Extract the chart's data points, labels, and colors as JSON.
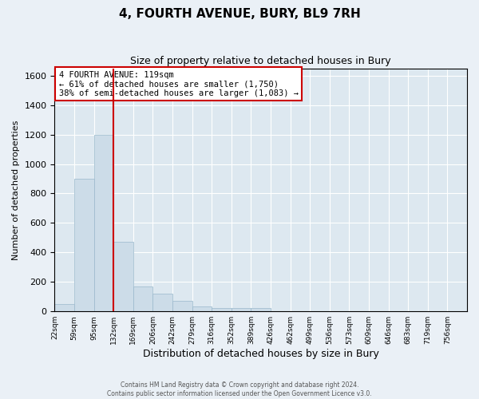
{
  "title": "4, FOURTH AVENUE, BURY, BL9 7RH",
  "subtitle": "Size of property relative to detached houses in Bury",
  "xlabel": "Distribution of detached houses by size in Bury",
  "ylabel": "Number of detached properties",
  "bar_color": "#ccdce8",
  "bar_edge_color": "#9ab8cc",
  "background_color": "#dde8f0",
  "grid_color": "#ffffff",
  "annotation_box_color": "#cc0000",
  "annotation_line_color": "#cc0000",
  "categories": [
    "22sqm",
    "59sqm",
    "95sqm",
    "132sqm",
    "169sqm",
    "206sqm",
    "242sqm",
    "279sqm",
    "316sqm",
    "352sqm",
    "389sqm",
    "426sqm",
    "462sqm",
    "499sqm",
    "536sqm",
    "573sqm",
    "609sqm",
    "646sqm",
    "683sqm",
    "719sqm",
    "756sqm"
  ],
  "values": [
    50,
    900,
    1200,
    470,
    170,
    120,
    70,
    35,
    25,
    25,
    25,
    0,
    0,
    0,
    0,
    0,
    0,
    0,
    0,
    0,
    0
  ],
  "red_line_bin": 2,
  "ylim": [
    0,
    1650
  ],
  "yticks": [
    0,
    200,
    400,
    600,
    800,
    1000,
    1200,
    1400,
    1600
  ],
  "annotation_text": "4 FOURTH AVENUE: 119sqm\n← 61% of detached houses are smaller (1,750)\n38% of semi-detached houses are larger (1,083) →",
  "footer1": "Contains HM Land Registry data © Crown copyright and database right 2024.",
  "footer2": "Contains public sector information licensed under the Open Government Licence v3.0."
}
